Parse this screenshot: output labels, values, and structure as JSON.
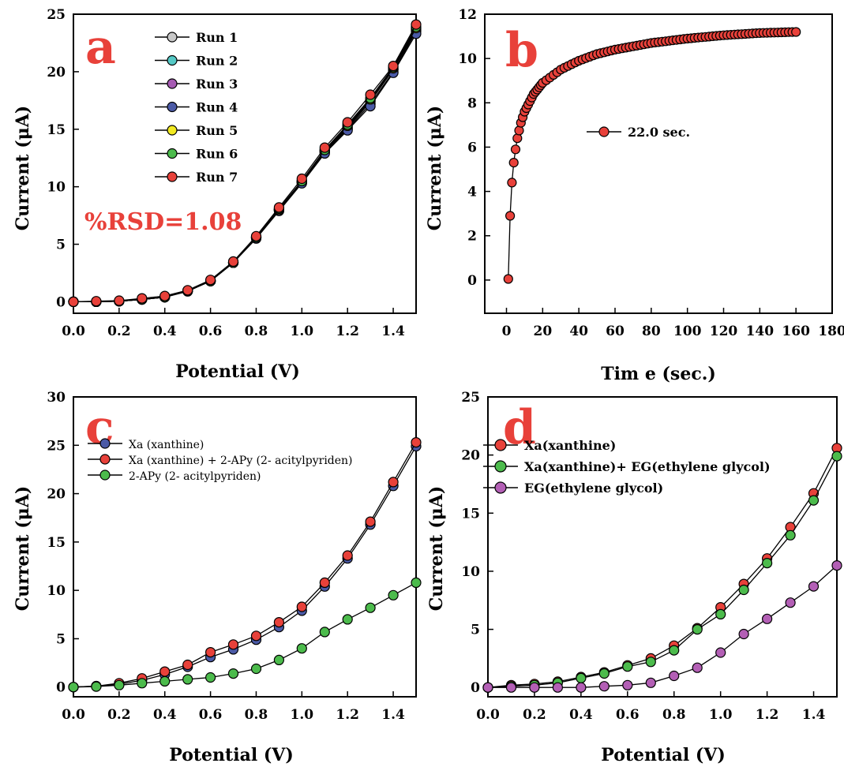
{
  "chart_data": [
    {
      "panel": "a",
      "type": "line",
      "xlabel": "Potential (V)",
      "ylabel": "Current (μA)",
      "xlim": [
        0,
        1.5
      ],
      "ylim": [
        -1,
        25
      ],
      "xticks": [
        "0.0",
        "0.2",
        "0.4",
        "0.6",
        "0.8",
        "1.0",
        "1.2",
        "1.4"
      ],
      "yticks": [
        "0",
        "5",
        "10",
        "15",
        "20",
        "25"
      ],
      "annotation": "%RSD=1.08",
      "legend_position": "top-center",
      "x": [
        0,
        0.1,
        0.2,
        0.3,
        0.4,
        0.5,
        0.6,
        0.7,
        0.8,
        0.9,
        1.0,
        1.1,
        1.2,
        1.3,
        1.4,
        1.5
      ],
      "series": [
        {
          "name": "Run 1",
          "color": "#c8c8c8",
          "values": [
            0,
            0,
            0.05,
            0.2,
            0.4,
            0.95,
            1.8,
            3.4,
            5.6,
            8.0,
            10.4,
            13.1,
            15.1,
            17.4,
            20.2,
            23.6
          ]
        },
        {
          "name": "Run 2",
          "color": "#55c9c6",
          "values": [
            0,
            0,
            0.05,
            0.2,
            0.4,
            0.95,
            1.8,
            3.4,
            5.6,
            8.0,
            10.4,
            13.1,
            15.2,
            17.5,
            20.2,
            23.7
          ]
        },
        {
          "name": "Run 3",
          "color": "#a65bb3",
          "values": [
            0,
            0,
            0.05,
            0.2,
            0.4,
            0.95,
            1.8,
            3.4,
            5.6,
            8.0,
            10.4,
            13.0,
            15.0,
            17.2,
            20.0,
            23.5
          ]
        },
        {
          "name": "Run 4",
          "color": "#4b5aa6",
          "values": [
            0,
            0,
            0.05,
            0.2,
            0.4,
            0.9,
            1.8,
            3.4,
            5.5,
            7.9,
            10.3,
            12.9,
            14.9,
            17.0,
            19.9,
            23.3
          ]
        },
        {
          "name": "Run 5",
          "color": "#f2ea22",
          "values": [
            0,
            0,
            0.05,
            0.2,
            0.4,
            0.95,
            1.8,
            3.4,
            5.6,
            8.0,
            10.5,
            13.2,
            15.3,
            17.6,
            20.3,
            23.8
          ]
        },
        {
          "name": "Run 6",
          "color": "#4cbb4c",
          "values": [
            0,
            0,
            0.05,
            0.2,
            0.4,
            0.95,
            1.8,
            3.4,
            5.6,
            8.1,
            10.5,
            13.2,
            15.4,
            17.7,
            20.4,
            23.9
          ]
        },
        {
          "name": "Run 7",
          "color": "#e8413a",
          "values": [
            0,
            0.05,
            0.1,
            0.3,
            0.5,
            1.0,
            1.9,
            3.5,
            5.7,
            8.2,
            10.7,
            13.4,
            15.6,
            18.0,
            20.5,
            24.1
          ]
        }
      ]
    },
    {
      "panel": "b",
      "type": "line",
      "xlabel": "Tim e (sec.)",
      "ylabel": "Current (μA)",
      "xlim": [
        -12,
        180
      ],
      "ylim": [
        -1.5,
        12
      ],
      "xticks": [
        "0",
        "20",
        "40",
        "60",
        "80",
        "100",
        "120",
        "140",
        "160",
        "180"
      ],
      "yticks": [
        "0",
        "2",
        "4",
        "6",
        "8",
        "10",
        "12"
      ],
      "legend_position": "center",
      "series": [
        {
          "name": "22.0 sec.",
          "color": "#e8413a",
          "x_range": [
            1,
            160
          ],
          "model": "i(t) = 11.2*(1-exp(-(t-1)/9))^0.55 ... saturating curve",
          "points": [
            [
              1,
              0.05
            ],
            [
              2,
              2.9
            ],
            [
              3,
              4.4
            ],
            [
              4,
              5.3
            ],
            [
              5,
              5.9
            ],
            [
              6,
              6.4
            ],
            [
              8,
              7.1
            ],
            [
              10,
              7.6
            ],
            [
              15,
              8.4
            ],
            [
              20,
              8.9
            ],
            [
              30,
              9.5
            ],
            [
              40,
              9.9
            ],
            [
              50,
              10.2
            ],
            [
              60,
              10.4
            ],
            [
              80,
              10.7
            ],
            [
              100,
              10.9
            ],
            [
              120,
              11.05
            ],
            [
              140,
              11.15
            ],
            [
              160,
              11.2
            ]
          ]
        }
      ]
    },
    {
      "panel": "c",
      "type": "line",
      "xlabel": "Potential (V)",
      "ylabel": "Current (μA)",
      "xlim": [
        0,
        1.5
      ],
      "ylim": [
        -1,
        30
      ],
      "xticks": [
        "0.0",
        "0.2",
        "0.4",
        "0.6",
        "0.8",
        "1.0",
        "1.2",
        "1.4"
      ],
      "yticks": [
        "0",
        "5",
        "10",
        "15",
        "20",
        "25",
        "30"
      ],
      "legend_position": "top-left",
      "x": [
        0,
        0.1,
        0.2,
        0.3,
        0.4,
        0.5,
        0.6,
        0.7,
        0.8,
        0.9,
        1.0,
        1.1,
        1.2,
        1.3,
        1.4,
        1.5
      ],
      "series": [
        {
          "name": "Xa (xanthine)",
          "color": "#4b5aa6",
          "values": [
            0,
            0.1,
            0.3,
            0.7,
            1.3,
            2.1,
            3.1,
            3.9,
            4.9,
            6.2,
            7.9,
            10.4,
            13.3,
            16.8,
            20.8,
            24.9
          ]
        },
        {
          "name": "Xa (xanthine) + 2-APy (2- acitylpyriden)",
          "color": "#e8413a",
          "values": [
            0,
            0.1,
            0.4,
            0.9,
            1.6,
            2.3,
            3.6,
            4.4,
            5.3,
            6.7,
            8.3,
            10.8,
            13.6,
            17.1,
            21.2,
            25.3
          ]
        },
        {
          "name": "2-APy (2- acitylpyriden)",
          "color": "#4cbb4c",
          "values": [
            0,
            0.05,
            0.2,
            0.4,
            0.6,
            0.8,
            1.0,
            1.4,
            1.9,
            2.8,
            4.0,
            5.7,
            7.0,
            8.2,
            9.5,
            10.8
          ]
        }
      ]
    },
    {
      "panel": "d",
      "type": "line",
      "xlabel": "Potential (V)",
      "ylabel": "Current (μA)",
      "xlim": [
        0,
        1.5
      ],
      "ylim": [
        -0.8,
        25
      ],
      "xticks": [
        "0.0",
        "0.2",
        "0.4",
        "0.6",
        "0.8",
        "1.0",
        "1.2",
        "1.4"
      ],
      "yticks": [
        "0",
        "5",
        "10",
        "15",
        "20",
        "25"
      ],
      "legend_position": "top-left",
      "x": [
        0,
        0.1,
        0.2,
        0.3,
        0.4,
        0.5,
        0.6,
        0.7,
        0.8,
        0.9,
        1.0,
        1.1,
        1.2,
        1.3,
        1.4,
        1.5
      ],
      "series": [
        {
          "name": "Xa(xanthine)",
          "color": "#e8413a",
          "values": [
            0,
            0.2,
            0.3,
            0.5,
            0.9,
            1.3,
            1.9,
            2.5,
            3.6,
            5.1,
            6.9,
            8.9,
            11.1,
            13.8,
            16.7,
            20.6
          ]
        },
        {
          "name": "Xa(xanthine)+ EG(ethylene glycol)",
          "color": "#4cbb4c",
          "values": [
            0,
            0.1,
            0.2,
            0.4,
            0.8,
            1.2,
            1.8,
            2.2,
            3.2,
            5.0,
            6.3,
            8.4,
            10.7,
            13.1,
            16.1,
            19.9
          ]
        },
        {
          "name": "EG(ethylene glycol)",
          "color": "#b35fb5",
          "values": [
            0,
            0,
            0,
            0,
            0,
            0.1,
            0.2,
            0.4,
            1.0,
            1.7,
            3.0,
            4.6,
            5.9,
            7.3,
            8.7,
            10.5
          ]
        }
      ]
    }
  ]
}
